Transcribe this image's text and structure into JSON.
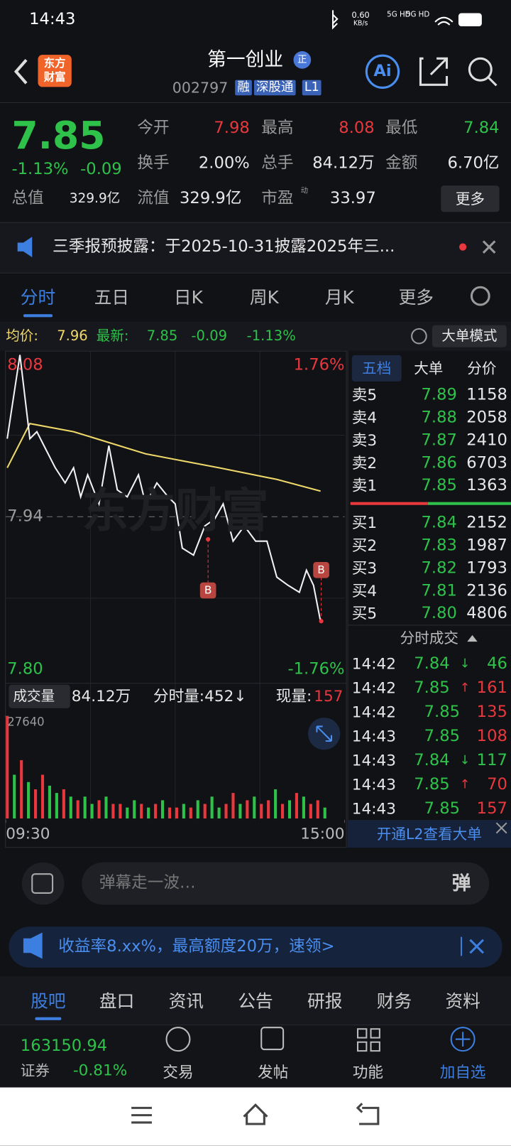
{
  "status": {
    "time": "14:43",
    "speed": "0.60",
    "speed_unit": "KB/s",
    "net": [
      "5G HD",
      "5G HD"
    ]
  },
  "header": {
    "logo": [
      "东方",
      "财富"
    ],
    "title": "第一创业",
    "badge": "正",
    "code": "002797",
    "tags": [
      "融",
      "深股通",
      "L1"
    ],
    "ai": "Ai"
  },
  "quote": {
    "price": "7.85",
    "pct": "-1.13%",
    "change": "-0.09",
    "fields": [
      {
        "label": "今开",
        "value": "7.98"
      },
      {
        "label": "最高",
        "value": "8.08"
      },
      {
        "label": "最低",
        "value": "7.84"
      },
      {
        "label": "换手",
        "value": "2.00%"
      },
      {
        "label": "总手",
        "value": "84.12万"
      },
      {
        "label": "金额",
        "value": "6.70亿"
      },
      {
        "label": "总值",
        "value": "329.9亿"
      },
      {
        "label": "流值",
        "value": "329.9亿"
      },
      {
        "label": "市盈",
        "value": "33.97"
      }
    ],
    "pe_mark": "动",
    "more": "更多"
  },
  "notice": "三季报预披露：于2025-10-31披露2025年三...",
  "tabs": [
    "分时",
    "五日",
    "日K",
    "周K",
    "月K",
    "更多"
  ],
  "infobar": {
    "avg_label": "均价:",
    "avg": "7.96",
    "last_label": "最新:",
    "last": "7.85",
    "change": "-0.09",
    "pct": "-1.13%",
    "mode": "大单模式"
  },
  "chart": {
    "type": "line",
    "xlim": [
      0,
      240
    ],
    "xticks": [
      {
        "value": 0,
        "label": "09:30"
      },
      {
        "value": 240,
        "label": "15:00"
      }
    ],
    "ylim": [
      7.8,
      8.08
    ],
    "yticks": [
      {
        "value": 7.8,
        "label": "7.80"
      },
      7.94,
      8.08
    ],
    "pct_labels": [
      "1.76%",
      "-1.76%"
    ],
    "watermark": "东方财富",
    "markers": [
      "B",
      "B"
    ],
    "price": {
      "color": "#f2f2f2",
      "x": [
        1,
        10,
        17,
        22,
        27,
        35,
        42,
        48,
        53,
        58,
        66,
        73,
        79,
        86,
        94,
        99,
        107,
        115,
        120,
        125,
        133,
        141,
        148,
        154,
        161,
        169,
        177,
        185,
        192,
        200,
        208,
        213,
        218,
        223
      ],
      "values": [
        8.007,
        8.079,
        8.007,
        8.013,
        8.001,
        7.982,
        7.969,
        7.982,
        7.957,
        7.976,
        7.951,
        8.001,
        7.963,
        7.957,
        7.976,
        7.951,
        7.969,
        7.957,
        7.951,
        7.913,
        7.907,
        7.932,
        7.938,
        7.951,
        7.919,
        7.932,
        7.919,
        7.919,
        7.888,
        7.881,
        7.875,
        7.894,
        7.881,
        7.85
      ]
    },
    "avg": {
      "color": "#efd86a",
      "x": [
        1,
        17,
        48,
        99,
        151,
        192,
        223
      ],
      "values": [
        7.982,
        8.02,
        8.013,
        7.994,
        7.982,
        7.972,
        7.962
      ]
    }
  },
  "volume": {
    "label": "成交量",
    "total": "84.12万",
    "minute": "分时量:452↓",
    "now_label": "现量:",
    "now": "157",
    "ylim": [
      0,
      27640
    ],
    "yticks": [
      27640
    ],
    "up_color": "#e8383d",
    "down_color": "#2ec24a",
    "values": [
      27640,
      11820,
      15760,
      9850,
      7880,
      11820,
      8865,
      6895,
      7880,
      5910,
      4925,
      5910,
      3940,
      4925,
      5910,
      3940,
      3940,
      2955,
      4925,
      3940,
      2955,
      3940,
      4925,
      2955,
      2955,
      3940,
      2955,
      4925,
      3940,
      5910,
      2955,
      3940,
      6895,
      3940,
      4925,
      5910,
      3940,
      4925,
      7880,
      3940,
      4925,
      6895,
      5910,
      3940,
      4925,
      2955
    ],
    "rising": [
      true,
      false,
      true,
      false,
      true,
      true,
      false,
      false,
      true,
      false,
      true,
      false,
      false,
      true,
      false,
      true,
      true,
      false,
      false,
      true,
      false,
      true,
      false,
      true,
      true,
      false,
      true,
      false,
      true,
      false,
      false,
      true,
      true,
      false,
      true,
      false,
      true,
      true,
      false,
      true,
      false,
      true,
      false,
      true,
      true,
      false
    ]
  },
  "book": {
    "tabs": [
      "五档",
      "大单",
      "分价"
    ],
    "asks": [
      [
        "卖5",
        "7.89",
        "1158"
      ],
      [
        "卖4",
        "7.88",
        "2058"
      ],
      [
        "卖3",
        "7.87",
        "2410"
      ],
      [
        "卖2",
        "7.86",
        "6703"
      ],
      [
        "卖1",
        "7.85",
        "1363"
      ]
    ],
    "bids": [
      [
        "买1",
        "7.84",
        "2152"
      ],
      [
        "买2",
        "7.83",
        "1987"
      ],
      [
        "买3",
        "7.82",
        "1793"
      ],
      [
        "买4",
        "7.81",
        "2136"
      ],
      [
        "买5",
        "7.80",
        "4806"
      ]
    ],
    "trades_title": "分时成交",
    "trades": [
      {
        "time": "14:42",
        "price": "7.84",
        "arrow": "↓",
        "vol": "46"
      },
      {
        "time": "14:42",
        "price": "7.85",
        "arrow": "↑",
        "vol": "161"
      },
      {
        "time": "14:42",
        "price": "7.85",
        "vol": "135"
      },
      {
        "time": "14:43",
        "price": "7.85",
        "vol": "108"
      },
      {
        "time": "14:43",
        "price": "7.84",
        "arrow": "↓",
        "vol": "117"
      },
      {
        "time": "14:43",
        "price": "7.85",
        "arrow": "↑",
        "vol": "70"
      },
      {
        "time": "14:43",
        "price": "7.85",
        "vol": "157"
      }
    ],
    "l2": "开通L2查看大单"
  },
  "comment": {
    "placeholder": "弹幕走一波…",
    "button": "弹"
  },
  "ad": "收益率8.xx%，最高额度20万，速领>",
  "bottom_tabs": [
    "股吧",
    "盘口",
    "资讯",
    "公告",
    "研报",
    "财务",
    "资料"
  ],
  "footer": {
    "index": "163150.94",
    "index_name": "证券",
    "index_pct": "-0.81%",
    "actions": [
      "交易",
      "发帖",
      "功能",
      "加自选"
    ]
  }
}
